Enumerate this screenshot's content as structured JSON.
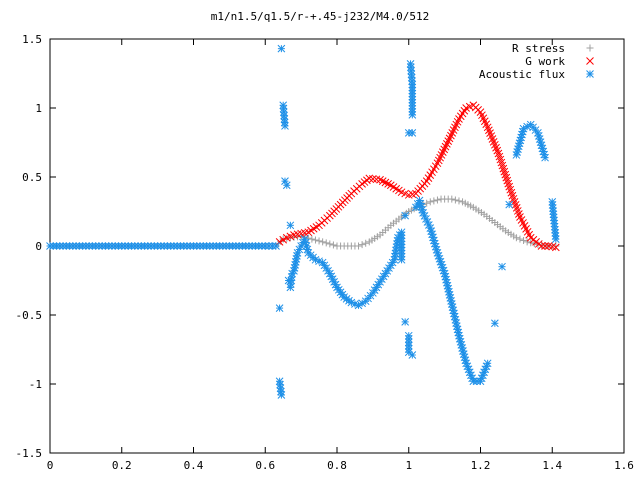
{
  "chart_data": {
    "type": "scatter",
    "title": "m1/n1.5/q1.5/r-+.45-j232/M4.0/512",
    "xlabel": "",
    "ylabel": "",
    "xlim": [
      0,
      1.6
    ],
    "ylim": [
      -1.5,
      1.5
    ],
    "x_ticks": [
      "0",
      "0.2",
      "0.4",
      "0.6",
      "0.8",
      "1",
      "1.2",
      "1.4",
      "1.6"
    ],
    "y_ticks": [
      "1.5",
      "1",
      "0.5",
      "0",
      "-0.5",
      "-1",
      "-1.5"
    ],
    "grid": false,
    "legend_position": "top-right",
    "series": [
      {
        "name": "R stress",
        "marker": "plus",
        "color": "#a0a0a0",
        "points": [
          [
            0.0,
            0.0
          ],
          [
            0.1,
            0.0
          ],
          [
            0.2,
            0.0
          ],
          [
            0.3,
            0.0
          ],
          [
            0.4,
            0.0
          ],
          [
            0.5,
            0.0
          ],
          [
            0.6,
            0.0
          ],
          [
            0.63,
            0.0
          ],
          [
            0.65,
            0.05
          ],
          [
            0.67,
            0.06
          ],
          [
            0.7,
            0.07
          ],
          [
            0.73,
            0.05
          ],
          [
            0.76,
            0.03
          ],
          [
            0.8,
            0.0
          ],
          [
            0.83,
            0.0
          ],
          [
            0.86,
            0.0
          ],
          [
            0.89,
            0.03
          ],
          [
            0.92,
            0.08
          ],
          [
            0.95,
            0.15
          ],
          [
            0.98,
            0.21
          ],
          [
            1.0,
            0.25
          ],
          [
            1.03,
            0.29
          ],
          [
            1.06,
            0.32
          ],
          [
            1.09,
            0.34
          ],
          [
            1.12,
            0.34
          ],
          [
            1.15,
            0.32
          ],
          [
            1.18,
            0.28
          ],
          [
            1.21,
            0.23
          ],
          [
            1.24,
            0.17
          ],
          [
            1.27,
            0.11
          ],
          [
            1.3,
            0.06
          ],
          [
            1.33,
            0.03
          ],
          [
            1.36,
            0.01
          ],
          [
            1.39,
            0.0
          ],
          [
            1.41,
            0.0
          ]
        ]
      },
      {
        "name": "G work",
        "marker": "cross",
        "color": "#ff0000",
        "points": [
          [
            0.64,
            0.03
          ],
          [
            0.66,
            0.06
          ],
          [
            0.68,
            0.08
          ],
          [
            0.7,
            0.09
          ],
          [
            0.72,
            0.1
          ],
          [
            0.75,
            0.15
          ],
          [
            0.78,
            0.22
          ],
          [
            0.81,
            0.3
          ],
          [
            0.84,
            0.38
          ],
          [
            0.87,
            0.45
          ],
          [
            0.89,
            0.49
          ],
          [
            0.92,
            0.48
          ],
          [
            0.95,
            0.44
          ],
          [
            0.98,
            0.39
          ],
          [
            1.0,
            0.37
          ],
          [
            1.02,
            0.38
          ],
          [
            1.05,
            0.47
          ],
          [
            1.08,
            0.6
          ],
          [
            1.11,
            0.76
          ],
          [
            1.14,
            0.92
          ],
          [
            1.16,
            1.0
          ],
          [
            1.18,
            1.02
          ],
          [
            1.2,
            0.97
          ],
          [
            1.22,
            0.86
          ],
          [
            1.25,
            0.67
          ],
          [
            1.28,
            0.43
          ],
          [
            1.31,
            0.21
          ],
          [
            1.34,
            0.06
          ],
          [
            1.37,
            0.0
          ],
          [
            1.39,
            0.0
          ],
          [
            1.41,
            -0.01
          ]
        ]
      },
      {
        "name": "Acoustic flux",
        "marker": "star",
        "color": "#1e90e8",
        "points": [
          [
            0.0,
            0.0
          ],
          [
            0.1,
            0.0
          ],
          [
            0.2,
            0.0
          ],
          [
            0.3,
            0.0
          ],
          [
            0.4,
            0.0
          ],
          [
            0.5,
            0.0
          ],
          [
            0.6,
            0.0
          ],
          [
            0.63,
            0.0
          ],
          [
            0.64,
            -0.45
          ],
          [
            0.64,
            -0.98
          ],
          [
            0.645,
            -1.08
          ],
          [
            0.645,
            1.43
          ],
          [
            0.65,
            1.02
          ],
          [
            0.655,
            0.87
          ],
          [
            0.655,
            0.47
          ],
          [
            0.66,
            0.44
          ],
          [
            0.665,
            -0.25
          ],
          [
            0.67,
            0.15
          ],
          [
            0.67,
            -0.3
          ],
          [
            0.675,
            -0.2
          ],
          [
            0.68,
            -0.18
          ],
          [
            0.69,
            -0.05
          ],
          [
            0.7,
            0.0
          ],
          [
            0.71,
            0.05
          ],
          [
            0.72,
            -0.05
          ],
          [
            0.74,
            -0.1
          ],
          [
            0.76,
            -0.12
          ],
          [
            0.78,
            -0.2
          ],
          [
            0.8,
            -0.3
          ],
          [
            0.82,
            -0.37
          ],
          [
            0.84,
            -0.41
          ],
          [
            0.86,
            -0.43
          ],
          [
            0.88,
            -0.4
          ],
          [
            0.9,
            -0.34
          ],
          [
            0.92,
            -0.26
          ],
          [
            0.94,
            -0.18
          ],
          [
            0.96,
            -0.1
          ],
          [
            0.97,
            0.06
          ],
          [
            0.98,
            0.1
          ],
          [
            0.98,
            -0.1
          ],
          [
            0.99,
            0.22
          ],
          [
            0.99,
            -0.55
          ],
          [
            1.0,
            0.82
          ],
          [
            1.0,
            -0.65
          ],
          [
            1.0,
            -0.77
          ],
          [
            1.005,
            1.32
          ],
          [
            1.01,
            1.17
          ],
          [
            1.01,
            0.95
          ],
          [
            1.01,
            -0.79
          ],
          [
            1.01,
            0.82
          ],
          [
            1.02,
            0.28
          ],
          [
            1.03,
            0.33
          ],
          [
            1.04,
            0.24
          ],
          [
            1.06,
            0.13
          ],
          [
            1.08,
            -0.05
          ],
          [
            1.1,
            -0.2
          ],
          [
            1.12,
            -0.42
          ],
          [
            1.14,
            -0.65
          ],
          [
            1.16,
            -0.85
          ],
          [
            1.18,
            -0.98
          ],
          [
            1.2,
            -0.98
          ],
          [
            1.22,
            -0.85
          ],
          [
            1.24,
            -0.56
          ],
          [
            1.26,
            -0.15
          ],
          [
            1.28,
            0.3
          ],
          [
            1.3,
            0.66
          ],
          [
            1.32,
            0.85
          ],
          [
            1.34,
            0.88
          ],
          [
            1.36,
            0.82
          ],
          [
            1.38,
            0.64
          ],
          [
            1.4,
            0.32
          ],
          [
            1.41,
            0.05
          ]
        ]
      }
    ]
  }
}
